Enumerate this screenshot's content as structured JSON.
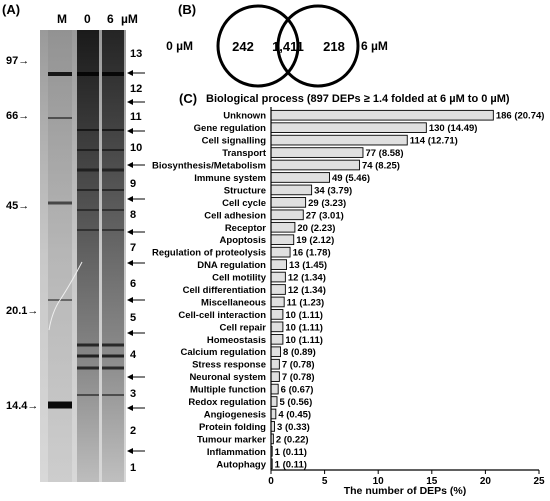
{
  "panel_a": {
    "label": "(A)",
    "lane_headers": [
      "M",
      "0",
      "6",
      "µM"
    ],
    "markers": [
      "97",
      "66",
      "45",
      "20.1",
      "14.4"
    ],
    "marker_arrow": "→",
    "fractions": [
      "13",
      "12",
      "11",
      "10",
      "9",
      "8",
      "7",
      "6",
      "5",
      "4",
      "3",
      "2",
      "1"
    ]
  },
  "panel_b": {
    "label": "(B)",
    "left_condition": "0 µM",
    "right_condition": "6 µM",
    "left_only": "242",
    "overlap": "1,411",
    "right_only": "218"
  },
  "chart_data": {
    "type": "bar",
    "orientation": "horizontal",
    "panel_label": "(C)",
    "title": "Biological process (897 DEPs ≥ 1.4 folded at 6 µM to 0 µM)",
    "xlabel": "The number of DEPs (%)",
    "ylabel": "",
    "xlim": [
      0,
      25
    ],
    "xticks": [
      0,
      5,
      10,
      15,
      20,
      25
    ],
    "grid": false,
    "bar_color": "#e0e0e0",
    "categories": [
      "Unknown",
      "Gene regulation",
      "Cell signalling",
      "Transport",
      "Biosynthesis/Metabolism",
      "Immune system",
      "Structure",
      "Cell cycle",
      "Cell adhesion",
      "Receptor",
      "Apoptosis",
      "Regulation of proteolysis",
      "DNA regulation",
      "Cell motility",
      "Cell differentiation",
      "Miscellaneous",
      "Cell-cell interaction",
      "Cell repair",
      "Homeostasis",
      "Calcium regulation",
      "Stress response",
      "Neuronal system",
      "Multiple function",
      "Redox regulation",
      "Angiogenesis",
      "Protein folding",
      "Tumour marker",
      "Inflammation",
      "Autophagy"
    ],
    "values": [
      20.74,
      14.49,
      12.71,
      8.58,
      8.25,
      5.46,
      3.79,
      3.23,
      3.01,
      2.23,
      2.12,
      1.78,
      1.45,
      1.34,
      1.34,
      1.23,
      1.11,
      1.11,
      1.11,
      0.89,
      0.78,
      0.78,
      0.67,
      0.56,
      0.45,
      0.33,
      0.22,
      0.11,
      0.11
    ],
    "data_labels": [
      "186 (20.74)",
      "130 (14.49)",
      "114 (12.71)",
      "77 (8.58)",
      "74 (8.25)",
      "49 (5.46)",
      "34 (3.79)",
      "29 (3.23)",
      "27 (3.01)",
      "20 (2.23)",
      "19 (2.12)",
      "16 (1.78)",
      "13 (1.45)",
      "12 (1.34)",
      "12 (1.34)",
      "11 (1.23)",
      "10 (1.11)",
      "10 (1.11)",
      "10 (1.11)",
      "8 (0.89)",
      "7 (0.78)",
      "7 (0.78)",
      "6 (0.67)",
      "5 (0.56)",
      "4 (0.45)",
      "3 (0.33)",
      "2 (0.22)",
      "1 (0.11)",
      "1 (0.11)"
    ]
  }
}
